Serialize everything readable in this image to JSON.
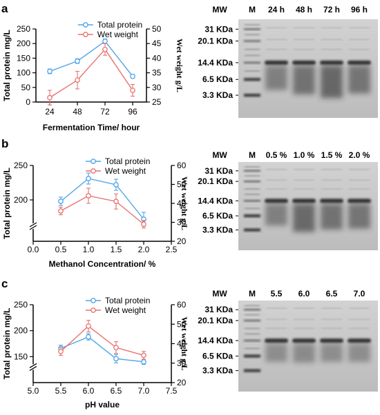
{
  "colors": {
    "protein": "#4da3e8",
    "weight": "#e8716d",
    "gel_bg": "#c9c9c9",
    "band": "#2b2b2b"
  },
  "legend": {
    "protein": "Total protein",
    "weight": "Wet weight"
  },
  "panels": [
    {
      "letter": "a",
      "xlabel": "Fermentation Time/ hour",
      "ylabel_left": "Total protein mg/L",
      "ylabel_right": "Wet weight g/L",
      "gel": {
        "mw_header": "MW",
        "marker_header": "M",
        "lanes": [
          "24 h",
          "48 h",
          "72 h",
          "96 h"
        ],
        "mw_labels": [
          "31 KDa",
          "20.1 KDa",
          "14.4 KDa",
          "6.5 KDa",
          "3.3 KDa"
        ]
      }
    },
    {
      "letter": "b",
      "xlabel": "Methanol Concentration/ %",
      "ylabel_left": "Total protein mg/L",
      "ylabel_right": "Wet weight g/L",
      "gel": {
        "mw_header": "MW",
        "marker_header": "M",
        "lanes": [
          "0.5 %",
          "1.0 %",
          "1.5 %",
          "2.0 %"
        ],
        "mw_labels": [
          "31 KDa",
          "20.1 KDa",
          "14.4 KDa",
          "6.5 KDa",
          "3.3 KDa"
        ]
      }
    },
    {
      "letter": "c",
      "xlabel": "pH value",
      "ylabel_left": "Total protein mg/L",
      "ylabel_right": "Wet weight g/L",
      "gel": {
        "mw_header": "MW",
        "marker_header": "M",
        "lanes": [
          "5.5",
          "6.0",
          "6.5",
          "7.0"
        ],
        "mw_labels": [
          "31 KDa",
          "20.1 KDa",
          "14.4 KDa",
          "6.5 KDa",
          "3.3 KDa"
        ]
      }
    }
  ],
  "chart_data": [
    {
      "type": "line",
      "x": [
        24,
        48,
        72,
        96
      ],
      "xticks": [
        "24",
        "48",
        "72",
        "96"
      ],
      "xlim": [
        12,
        108
      ],
      "xlabel": "Fermentation Time/ hour",
      "ylabel": "Total protein mg/L",
      "ylim": [
        0,
        250
      ],
      "yticks": [
        0,
        50,
        100,
        150,
        200,
        250
      ],
      "ylabel_right": "Wet weight g/L",
      "ylim_right": [
        25,
        50
      ],
      "yticks_right": [
        25,
        30,
        35,
        40,
        45,
        50
      ],
      "series": [
        {
          "name": "Total protein",
          "axis": "left",
          "values": [
            105,
            140,
            208,
            88
          ],
          "errors": [
            8,
            8,
            8,
            6
          ]
        },
        {
          "name": "Wet weight",
          "axis": "right",
          "values": [
            26.5,
            32.5,
            43,
            29
          ],
          "errors": [
            2.5,
            3,
            2,
            2
          ]
        }
      ]
    },
    {
      "type": "line",
      "x": [
        0.5,
        1.0,
        1.5,
        2.0
      ],
      "xticks": [
        "0.0",
        "0.5",
        "1.0",
        "1.5",
        "2.0",
        "2.5"
      ],
      "xtick_values": [
        0,
        0.5,
        1.0,
        1.5,
        2.0,
        2.5
      ],
      "xlim": [
        0,
        2.5
      ],
      "xlabel": "Methanol Concentration/ %",
      "ylabel": "Total protein mg/L",
      "ylim": [
        140,
        250
      ],
      "yticks": [
        200,
        250
      ],
      "axis_break": true,
      "ylabel_right": "Wet weight g/L",
      "ylim_right": [
        20,
        60
      ],
      "yticks_right": [
        20,
        30,
        40,
        50,
        60
      ],
      "series": [
        {
          "name": "Total protein",
          "axis": "left",
          "values": [
            198,
            231,
            222,
            172
          ],
          "errors": [
            6,
            8,
            8,
            10
          ]
        },
        {
          "name": "Wet weight",
          "axis": "right",
          "values": [
            36,
            44,
            41,
            29
          ],
          "errors": [
            2,
            4,
            4,
            2
          ]
        }
      ]
    },
    {
      "type": "line",
      "x": [
        5.5,
        6.0,
        6.5,
        7.0
      ],
      "xticks": [
        "5.0",
        "5.5",
        "6.0",
        "6.5",
        "7.0",
        "7.5"
      ],
      "xtick_values": [
        5.0,
        5.5,
        6.0,
        6.5,
        7.0,
        7.5
      ],
      "xlim": [
        5.0,
        7.5
      ],
      "xlabel": "pH value",
      "ylabel": "Total protein mg/L",
      "ylim": [
        100,
        250
      ],
      "yticks": [
        150,
        200,
        250
      ],
      "axis_break": true,
      "ylabel_right": "Wet weight g/L",
      "ylim_right": [
        20,
        60
      ],
      "yticks_right": [
        20,
        30,
        40,
        50,
        60
      ],
      "series": [
        {
          "name": "Total protein",
          "axis": "left",
          "values": [
            166,
            188,
            146,
            140
          ],
          "errors": [
            6,
            6,
            8,
            5
          ]
        },
        {
          "name": "Wet weight",
          "axis": "right",
          "values": [
            36,
            49,
            38,
            34
          ],
          "errors": [
            2,
            3,
            3,
            2
          ]
        }
      ]
    }
  ]
}
